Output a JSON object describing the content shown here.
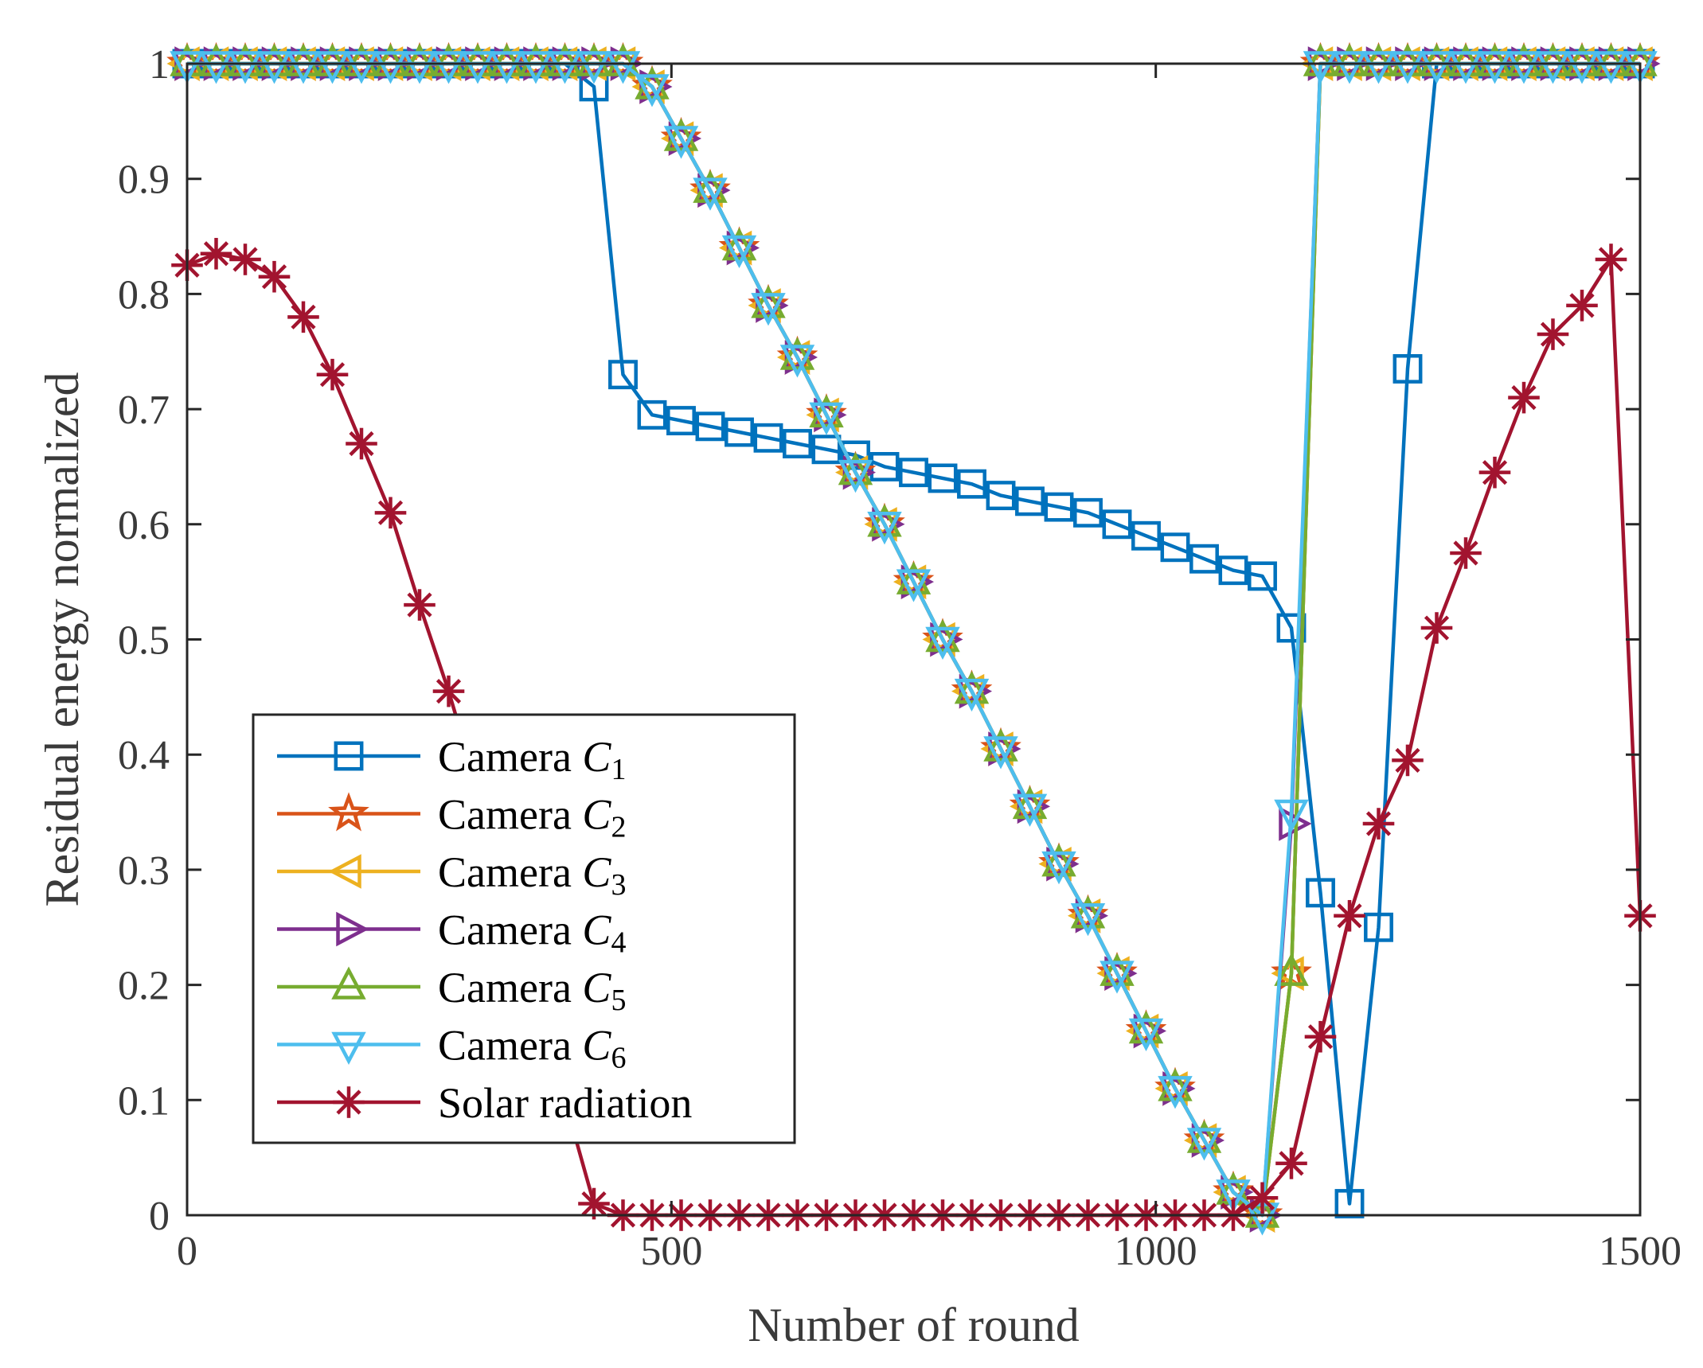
{
  "chart_data": {
    "type": "line",
    "title": "",
    "xlabel": "Number of round",
    "ylabel": "Residual energy normalized",
    "xlim": [
      0,
      1500
    ],
    "ylim": [
      0,
      1
    ],
    "xticks": [
      0,
      500,
      1000,
      1500
    ],
    "xtick_labels": [
      "0",
      "500",
      "1000",
      "1500"
    ],
    "yticks": [
      0,
      0.1,
      0.2,
      0.3,
      0.4,
      0.5,
      0.6,
      0.7,
      0.8,
      0.9,
      1
    ],
    "ytick_labels": [
      "0",
      "0.1",
      "0.2",
      "0.3",
      "0.4",
      "0.5",
      "0.6",
      "0.7",
      "0.8",
      "0.9",
      "1"
    ],
    "grid": false,
    "legend_position": "bottom-left",
    "series": [
      {
        "name": "Camera",
        "subscript": "C1",
        "label_main": "Camera ",
        "label_var": "C",
        "label_sub": "1",
        "color": "#0072BD",
        "marker": "square",
        "x": [
          0,
          30,
          60,
          90,
          120,
          150,
          180,
          210,
          240,
          270,
          300,
          330,
          360,
          390,
          420,
          450,
          480,
          510,
          540,
          570,
          600,
          630,
          660,
          690,
          720,
          750,
          780,
          810,
          840,
          870,
          900,
          930,
          960,
          990,
          1020,
          1050,
          1080,
          1110,
          1140,
          1170,
          1200,
          1230,
          1260,
          1290,
          1320,
          1350,
          1380,
          1410,
          1440,
          1470,
          1500
        ],
        "y": [
          1,
          1,
          1,
          1,
          1,
          1,
          1,
          1,
          1,
          1,
          1,
          1,
          1,
          1,
          0.98,
          0.73,
          0.695,
          0.69,
          0.685,
          0.68,
          0.675,
          0.67,
          0.665,
          0.66,
          0.65,
          0.645,
          0.64,
          0.635,
          0.625,
          0.62,
          0.615,
          0.61,
          0.6,
          0.59,
          0.58,
          0.57,
          0.56,
          0.555,
          0.51,
          0.28,
          0.01,
          0.25,
          0.735,
          1,
          1,
          1,
          1,
          1,
          1,
          1,
          1
        ]
      },
      {
        "name": "Camera",
        "label_main": "Camera ",
        "label_var": "C",
        "label_sub": "2",
        "color": "#D95319",
        "marker": "star",
        "x": [
          0,
          30,
          60,
          90,
          120,
          150,
          180,
          210,
          240,
          270,
          300,
          330,
          360,
          390,
          420,
          450,
          480,
          510,
          540,
          570,
          600,
          630,
          660,
          690,
          720,
          750,
          780,
          810,
          840,
          870,
          900,
          930,
          960,
          990,
          1020,
          1050,
          1080,
          1110,
          1140,
          1170,
          1200,
          1230,
          1260,
          1290,
          1320,
          1350,
          1380,
          1410,
          1440,
          1470,
          1500
        ],
        "y": [
          1,
          1,
          1,
          1,
          1,
          1,
          1,
          1,
          1,
          1,
          1,
          1,
          1,
          1,
          1,
          1,
          0.98,
          0.935,
          0.89,
          0.84,
          0.79,
          0.745,
          0.695,
          0.645,
          0.6,
          0.55,
          0.5,
          0.455,
          0.405,
          0.355,
          0.305,
          0.26,
          0.21,
          0.16,
          0.11,
          0.065,
          0.02,
          0,
          0.21,
          1,
          1,
          1,
          1,
          1,
          1,
          1,
          1,
          1,
          1,
          1,
          1
        ]
      },
      {
        "name": "Camera",
        "label_main": "Camera ",
        "label_var": "C",
        "label_sub": "3",
        "color": "#EDB120",
        "marker": "triangle-left",
        "x": [
          0,
          30,
          60,
          90,
          120,
          150,
          180,
          210,
          240,
          270,
          300,
          330,
          360,
          390,
          420,
          450,
          480,
          510,
          540,
          570,
          600,
          630,
          660,
          690,
          720,
          750,
          780,
          810,
          840,
          870,
          900,
          930,
          960,
          990,
          1020,
          1050,
          1080,
          1110,
          1140,
          1170,
          1200,
          1230,
          1260,
          1290,
          1320,
          1350,
          1380,
          1410,
          1440,
          1470,
          1500
        ],
        "y": [
          1,
          1,
          1,
          1,
          1,
          1,
          1,
          1,
          1,
          1,
          1,
          1,
          1,
          1,
          1,
          1,
          0.98,
          0.935,
          0.89,
          0.84,
          0.79,
          0.745,
          0.695,
          0.645,
          0.6,
          0.55,
          0.5,
          0.455,
          0.405,
          0.355,
          0.305,
          0.26,
          0.21,
          0.16,
          0.11,
          0.065,
          0.02,
          0,
          0.21,
          1,
          1,
          1,
          1,
          1,
          1,
          1,
          1,
          1,
          1,
          1,
          1
        ]
      },
      {
        "name": "Camera",
        "label_main": "Camera ",
        "label_var": "C",
        "label_sub": "4",
        "color": "#7E2F8E",
        "marker": "triangle-right",
        "x": [
          0,
          30,
          60,
          90,
          120,
          150,
          180,
          210,
          240,
          270,
          300,
          330,
          360,
          390,
          420,
          450,
          480,
          510,
          540,
          570,
          600,
          630,
          660,
          690,
          720,
          750,
          780,
          810,
          840,
          870,
          900,
          930,
          960,
          990,
          1020,
          1050,
          1080,
          1110,
          1140,
          1170,
          1200,
          1230,
          1260,
          1290,
          1320,
          1350,
          1380,
          1410,
          1440,
          1470,
          1500
        ],
        "y": [
          1,
          1,
          1,
          1,
          1,
          1,
          1,
          1,
          1,
          1,
          1,
          1,
          1,
          1,
          1,
          1,
          0.98,
          0.935,
          0.89,
          0.84,
          0.79,
          0.745,
          0.695,
          0.645,
          0.6,
          0.55,
          0.5,
          0.455,
          0.405,
          0.355,
          0.305,
          0.26,
          0.21,
          0.16,
          0.11,
          0.065,
          0.02,
          0,
          0.34,
          1,
          1,
          1,
          1,
          1,
          1,
          1,
          1,
          1,
          1,
          1,
          1
        ]
      },
      {
        "name": "Camera",
        "label_main": "Camera ",
        "label_var": "C",
        "label_sub": "5",
        "color": "#77AC30",
        "marker": "triangle-up",
        "x": [
          0,
          30,
          60,
          90,
          120,
          150,
          180,
          210,
          240,
          270,
          300,
          330,
          360,
          390,
          420,
          450,
          480,
          510,
          540,
          570,
          600,
          630,
          660,
          690,
          720,
          750,
          780,
          810,
          840,
          870,
          900,
          930,
          960,
          990,
          1020,
          1050,
          1080,
          1110,
          1140,
          1170,
          1200,
          1230,
          1260,
          1290,
          1320,
          1350,
          1380,
          1410,
          1440,
          1470,
          1500
        ],
        "y": [
          1,
          1,
          1,
          1,
          1,
          1,
          1,
          1,
          1,
          1,
          1,
          1,
          1,
          1,
          1,
          1,
          0.98,
          0.935,
          0.89,
          0.84,
          0.79,
          0.745,
          0.695,
          0.645,
          0.6,
          0.55,
          0.5,
          0.455,
          0.405,
          0.355,
          0.305,
          0.26,
          0.21,
          0.16,
          0.11,
          0.065,
          0.02,
          0,
          0.21,
          1,
          1,
          1,
          1,
          1,
          1,
          1,
          1,
          1,
          1,
          1,
          1
        ]
      },
      {
        "name": "Camera",
        "label_main": "Camera ",
        "label_var": "C",
        "label_sub": "6",
        "color": "#4DBEEE",
        "marker": "triangle-down",
        "x": [
          0,
          30,
          60,
          90,
          120,
          150,
          180,
          210,
          240,
          270,
          300,
          330,
          360,
          390,
          420,
          450,
          480,
          510,
          540,
          570,
          600,
          630,
          660,
          690,
          720,
          750,
          780,
          810,
          840,
          870,
          900,
          930,
          960,
          990,
          1020,
          1050,
          1080,
          1110,
          1140,
          1170,
          1200,
          1230,
          1260,
          1290,
          1320,
          1350,
          1380,
          1410,
          1440,
          1470,
          1500
        ],
        "y": [
          1,
          1,
          1,
          1,
          1,
          1,
          1,
          1,
          1,
          1,
          1,
          1,
          1,
          1,
          1,
          1,
          0.98,
          0.935,
          0.89,
          0.84,
          0.79,
          0.745,
          0.695,
          0.645,
          0.6,
          0.55,
          0.5,
          0.455,
          0.405,
          0.355,
          0.305,
          0.26,
          0.21,
          0.16,
          0.11,
          0.065,
          0.02,
          0,
          0.35,
          1,
          1,
          1,
          1,
          1,
          1,
          1,
          1,
          1,
          1,
          1,
          1
        ]
      },
      {
        "name": "Solar radiation",
        "label_main": " Solar radiation",
        "label_var": "",
        "label_sub": "",
        "color": "#A2142F",
        "marker": "asterisk",
        "x": [
          0,
          30,
          60,
          90,
          120,
          150,
          180,
          210,
          240,
          270,
          300,
          330,
          360,
          390,
          420,
          450,
          480,
          510,
          540,
          570,
          600,
          630,
          660,
          690,
          720,
          750,
          780,
          810,
          840,
          870,
          900,
          930,
          960,
          990,
          1020,
          1050,
          1080,
          1110,
          1140,
          1170,
          1200,
          1230,
          1260,
          1290,
          1320,
          1350,
          1380,
          1410,
          1440,
          1470,
          1500
        ],
        "y": [
          0.825,
          0.835,
          0.83,
          0.815,
          0.78,
          0.73,
          0.67,
          0.61,
          0.53,
          0.455,
          0.37,
          0.28,
          0.19,
          0.1,
          0.01,
          0,
          0,
          0,
          0,
          0,
          0,
          0,
          0,
          0,
          0,
          0,
          0,
          0,
          0,
          0,
          0,
          0,
          0,
          0,
          0,
          0,
          0,
          0.015,
          0.045,
          0.155,
          0.26,
          0.34,
          0.395,
          0.51,
          0.575,
          0.645,
          0.71,
          0.765,
          0.79,
          0.83,
          0.26
        ]
      }
    ]
  }
}
